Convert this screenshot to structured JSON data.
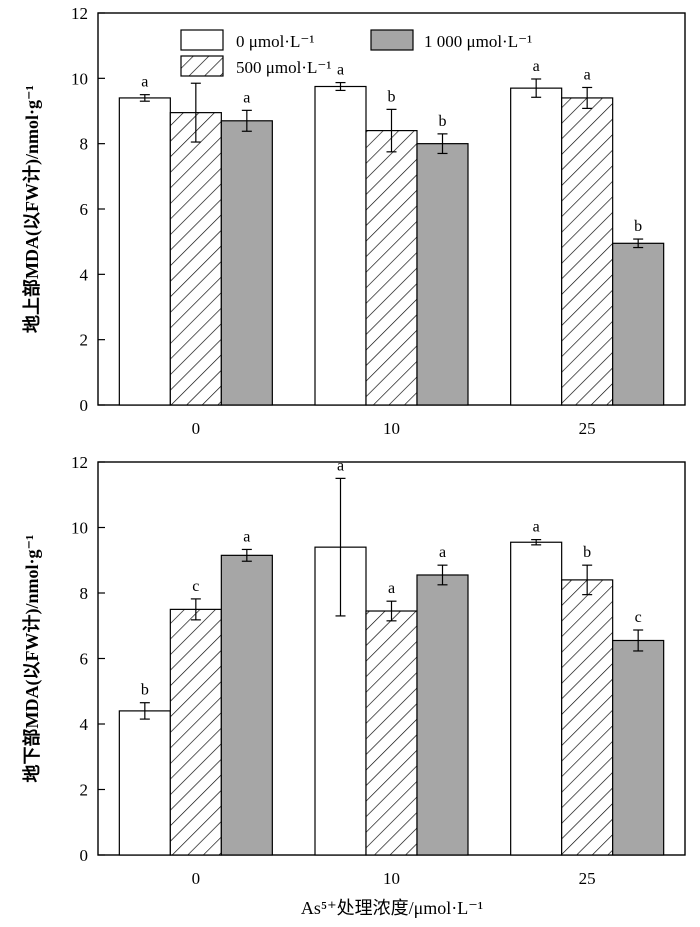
{
  "chart_data": [
    {
      "type": "bar",
      "ylabel": "地上部MDA(以FW计)/nmol·g⁻¹",
      "xlabel": "",
      "ylim": [
        0,
        12
      ],
      "yticks": [
        "0",
        "2",
        "4",
        "6",
        "8",
        "10",
        "12"
      ],
      "categories": [
        "0",
        "10",
        "25"
      ],
      "legend_position": "top",
      "series": [
        {
          "name": "0 μmol·L⁻¹",
          "fill": "#ffffff",
          "pattern": "none",
          "values": [
            9.4,
            9.75,
            9.7
          ],
          "errors": [
            0.1,
            0.12,
            0.28
          ],
          "labels": [
            "a",
            "a",
            "a"
          ]
        },
        {
          "name": "500 μmol·L⁻¹",
          "fill": "#ffffff",
          "pattern": "hatch",
          "values": [
            8.95,
            8.4,
            9.4
          ],
          "errors": [
            0.9,
            0.65,
            0.32
          ],
          "labels": [
            "a",
            "b",
            "a"
          ]
        },
        {
          "name": "1 000 μmol·L⁻¹",
          "fill": "#a6a6a6",
          "pattern": "none",
          "values": [
            8.7,
            8.0,
            4.95
          ],
          "errors": [
            0.32,
            0.3,
            0.13
          ],
          "labels": [
            "a",
            "b",
            "b"
          ]
        }
      ]
    },
    {
      "type": "bar",
      "ylabel": "地下部MDA(以FW计)/nmol·g⁻¹",
      "xlabel": "As⁵⁺处理浓度/μmol·L⁻¹",
      "ylim": [
        0,
        12
      ],
      "yticks": [
        "0",
        "2",
        "4",
        "6",
        "8",
        "10",
        "12"
      ],
      "categories": [
        "0",
        "10",
        "25"
      ],
      "series": [
        {
          "name": "0 μmol·L⁻¹",
          "fill": "#ffffff",
          "pattern": "none",
          "values": [
            4.4,
            9.4,
            9.55
          ],
          "errors": [
            0.25,
            2.1,
            0.08
          ],
          "labels": [
            "b",
            "a",
            "a"
          ]
        },
        {
          "name": "500 μmol·L⁻¹",
          "fill": "#ffffff",
          "pattern": "hatch",
          "values": [
            7.5,
            7.45,
            8.4
          ],
          "errors": [
            0.32,
            0.3,
            0.45
          ],
          "labels": [
            "c",
            "a",
            "b"
          ]
        },
        {
          "name": "1 000 μmol·L⁻¹",
          "fill": "#a6a6a6",
          "pattern": "none",
          "values": [
            9.15,
            8.55,
            6.55
          ],
          "errors": [
            0.18,
            0.3,
            0.32
          ],
          "labels": [
            "a",
            "a",
            "c"
          ]
        }
      ]
    }
  ]
}
